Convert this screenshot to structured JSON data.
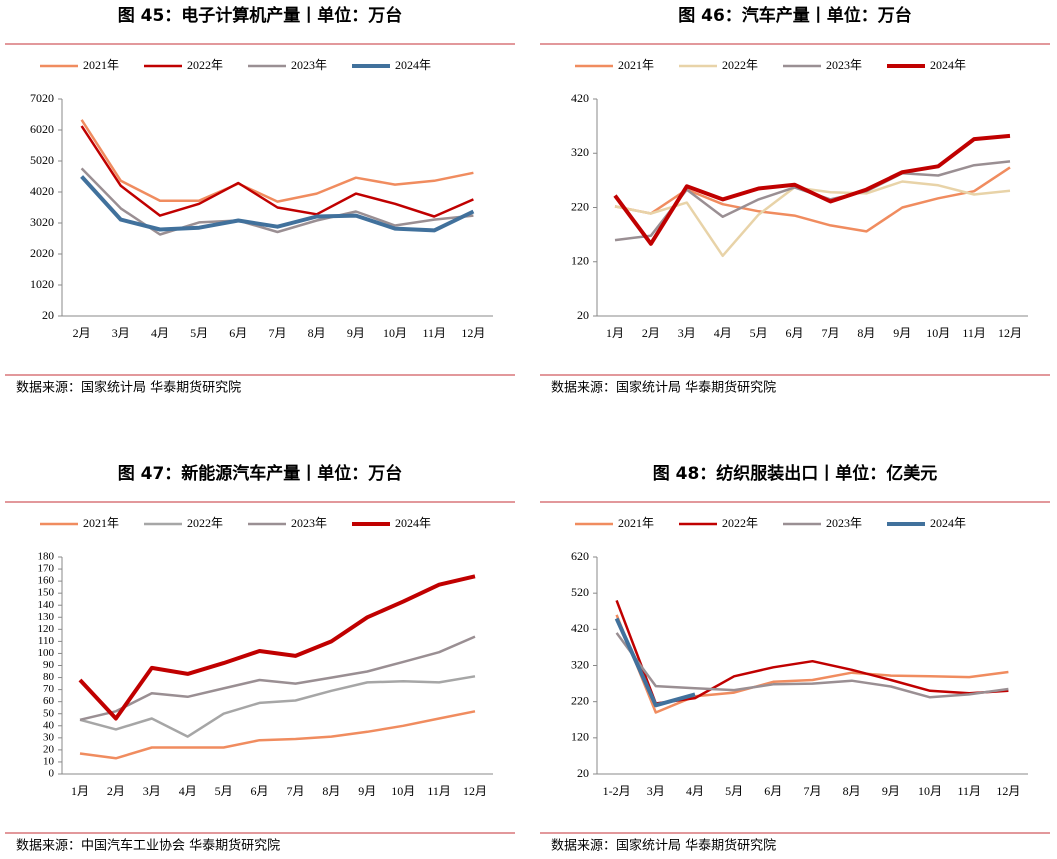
{
  "chart_data": [
    {
      "type": "line",
      "title": "图 45：电子计算机产量丨单位：万台",
      "source": "数据来源：国家统计局 华泰期货研究院",
      "categories": [
        "2月",
        "3月",
        "4月",
        "5月",
        "6月",
        "7月",
        "8月",
        "9月",
        "10月",
        "11月",
        "12月"
      ],
      "series": [
        {
          "name": "2021年",
          "color": "#f08c5f",
          "values": [
            6350,
            4380,
            3740,
            3740,
            4290,
            3710,
            3970,
            4480,
            4260,
            4380,
            4640
          ]
        },
        {
          "name": "2022年",
          "color": "#c00000",
          "values": [
            6150,
            4220,
            3260,
            3640,
            4310,
            3520,
            3300,
            3970,
            3640,
            3230,
            3780
          ]
        },
        {
          "name": "2023年",
          "color": "#9a8f93",
          "values": [
            4780,
            3490,
            2650,
            3040,
            3100,
            2730,
            3100,
            3390,
            2940,
            3130,
            3260
          ]
        },
        {
          "name": "2024年",
          "color": "#41719c",
          "values": [
            4520,
            3130,
            2810,
            2870,
            3100,
            2900,
            3230,
            3260,
            2840,
            2780,
            3390
          ]
        }
      ],
      "ylim": [
        20,
        7020
      ],
      "yticks": [
        20,
        1020,
        2020,
        3020,
        4020,
        5020,
        6020,
        7020
      ]
    },
    {
      "type": "line",
      "title": "图 46：汽车产量丨单位：万台",
      "source": "数据来源：国家统计局 华泰期货研究院",
      "categories": [
        "1月",
        "2月",
        "3月",
        "4月",
        "5月",
        "6月",
        "7月",
        "8月",
        "9月",
        "10月",
        "11月",
        "12月"
      ],
      "series": [
        {
          "name": "2021年",
          "color": "#f08c5f",
          "values": [
            222,
            209,
            253,
            226,
            213,
            205,
            187,
            176,
            220,
            237,
            250,
            294
          ]
        },
        {
          "name": "2022年",
          "color": "#e8d3a8",
          "values": [
            222,
            209,
            229,
            131,
            207,
            257,
            248,
            246,
            268,
            261,
            244,
            251
          ]
        },
        {
          "name": "2023年",
          "color": "#9a8f93",
          "values": [
            160,
            168,
            253,
            203,
            235,
            257,
            235,
            250,
            283,
            279,
            298,
            305
          ]
        },
        {
          "name": "2024年",
          "color": "#c00000",
          "values": [
            242,
            153,
            259,
            235,
            255,
            262,
            231,
            253,
            285,
            296,
            346,
            352
          ]
        }
      ],
      "ylim": [
        20,
        420
      ],
      "yticks": [
        20,
        120,
        220,
        320,
        420
      ]
    },
    {
      "type": "line",
      "title": "图 47：新能源汽车产量丨单位：万台",
      "source": "数据来源：中国汽车工业协会 华泰期货研究院",
      "categories": [
        "1月",
        "2月",
        "3月",
        "4月",
        "5月",
        "6月",
        "7月",
        "8月",
        "9月",
        "10月",
        "11月",
        "12月"
      ],
      "series": [
        {
          "name": "2021年",
          "color": "#f08c5f",
          "values": [
            17,
            13,
            22,
            22,
            22,
            28,
            29,
            31,
            35,
            40,
            46,
            52
          ]
        },
        {
          "name": "2022年",
          "color": "#a6a6a6",
          "values": [
            45,
            37,
            46,
            31,
            50,
            59,
            61,
            69,
            76,
            77,
            76,
            81
          ]
        },
        {
          "name": "2023年",
          "color": "#9a8f93",
          "values": [
            45,
            52,
            67,
            64,
            71,
            78,
            75,
            80,
            85,
            93,
            101,
            114
          ]
        },
        {
          "name": "2024年",
          "color": "#c00000",
          "values": [
            78,
            46,
            88,
            83,
            92,
            102,
            98,
            110,
            130,
            143,
            157,
            164
          ]
        }
      ],
      "ylim": [
        0,
        180
      ],
      "yticks": [
        0,
        10,
        20,
        30,
        40,
        50,
        60,
        70,
        80,
        90,
        100,
        110,
        120,
        130,
        140,
        150,
        160,
        170,
        180
      ]
    },
    {
      "type": "line",
      "title": "图 48：纺织服装出口丨单位：亿美元",
      "source": "数据来源：国家统计局 华泰期货研究院",
      "categories": [
        "1-2月",
        "3月",
        "4月",
        "5月",
        "6月",
        "7月",
        "8月",
        "9月",
        "10月",
        "11月",
        "12月"
      ],
      "series": [
        {
          "name": "2021年",
          "color": "#f08c5f",
          "values": [
            460,
            190,
            235,
            245,
            275,
            280,
            300,
            292,
            290,
            288,
            302
          ]
        },
        {
          "name": "2022年",
          "color": "#c00000",
          "values": [
            500,
            215,
            230,
            290,
            315,
            332,
            308,
            280,
            250,
            243,
            250
          ]
        },
        {
          "name": "2023年",
          "color": "#9a8f93",
          "values": [
            410,
            263,
            257,
            252,
            268,
            270,
            278,
            262,
            232,
            240,
            255
          ]
        },
        {
          "name": "2024年",
          "color": "#41719c",
          "values": [
            450,
            210,
            240,
            null,
            null,
            null,
            null,
            null,
            null,
            null,
            null
          ]
        }
      ],
      "ylim": [
        20,
        620
      ],
      "yticks": [
        20,
        120,
        220,
        320,
        420,
        520,
        620
      ]
    }
  ]
}
